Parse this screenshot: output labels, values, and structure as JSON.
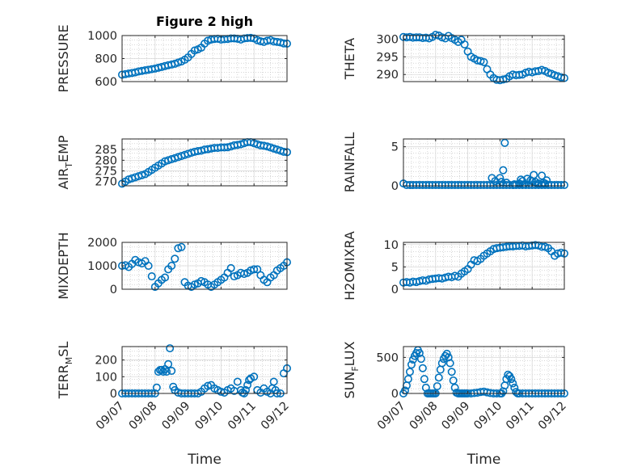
{
  "figure_title": "Figure 2 high",
  "colors": {
    "marker": "#0072BD",
    "axis": "#262626",
    "grid": "#bfbfbf"
  },
  "x_ticks": [
    "09/07",
    "09/08",
    "09/09",
    "09/10",
    "09/11",
    "09/12"
  ],
  "xlabel": "Time",
  "chart_data": [
    {
      "type": "scatter",
      "ylabel": "PRESSURE",
      "title": "Figure 2 high",
      "xlim": [
        0,
        5
      ],
      "ylim": [
        600,
        1000
      ],
      "yticks": [
        "600",
        "800",
        "1000"
      ],
      "ytick_values": [
        600,
        800,
        1000
      ],
      "grid": true,
      "series": [
        {
          "x": [
            0.0,
            0.1,
            0.2,
            0.3,
            0.4,
            0.5,
            0.6,
            0.7,
            0.8,
            0.9,
            1.0,
            1.1,
            1.2,
            1.3,
            1.4,
            1.5,
            1.6,
            1.7,
            1.8,
            1.9,
            2.0,
            2.1,
            2.2,
            2.3,
            2.4,
            2.5,
            2.6,
            2.7,
            2.8,
            2.9,
            3.0,
            3.1,
            3.2,
            3.3,
            3.4,
            3.5,
            3.6,
            3.7,
            3.8,
            3.9,
            4.0,
            4.1,
            4.2,
            4.3,
            4.4,
            4.5,
            4.6,
            4.7,
            4.8,
            4.9,
            5.0
          ],
          "y": [
            660,
            665,
            670,
            675,
            680,
            688,
            693,
            698,
            703,
            708,
            713,
            720,
            727,
            735,
            742,
            748,
            755,
            765,
            775,
            790,
            810,
            840,
            870,
            880,
            895,
            930,
            955,
            965,
            970,
            972,
            965,
            968,
            970,
            975,
            975,
            972,
            965,
            975,
            978,
            980,
            975,
            960,
            950,
            945,
            955,
            960,
            948,
            945,
            940,
            932,
            930
          ]
        }
      ]
    },
    {
      "type": "scatter",
      "ylabel": "THETA",
      "xlim": [
        0,
        5
      ],
      "ylim": [
        288,
        301
      ],
      "yticks": [
        "290",
        "295",
        "300"
      ],
      "ytick_values": [
        290,
        295,
        300
      ],
      "grid": true,
      "series": [
        {
          "x": [
            0.0,
            0.1,
            0.2,
            0.3,
            0.4,
            0.5,
            0.6,
            0.7,
            0.8,
            0.9,
            1.0,
            1.1,
            1.2,
            1.3,
            1.4,
            1.5,
            1.6,
            1.7,
            1.8,
            1.9,
            2.0,
            2.1,
            2.2,
            2.3,
            2.4,
            2.5,
            2.6,
            2.7,
            2.8,
            2.9,
            3.0,
            3.1,
            3.2,
            3.3,
            3.4,
            3.5,
            3.6,
            3.7,
            3.8,
            3.9,
            4.0,
            4.1,
            4.2,
            4.3,
            4.4,
            4.5,
            4.6,
            4.7,
            4.8,
            4.9,
            5.0
          ],
          "y": [
            300.6,
            300.5,
            300.6,
            300.4,
            300.5,
            300.5,
            300.3,
            300.4,
            300.2,
            300.6,
            301.2,
            301.0,
            300.5,
            300.2,
            300.9,
            300.3,
            299.8,
            299.2,
            299.8,
            298.5,
            296.5,
            295.0,
            294.5,
            294.0,
            293.8,
            293.5,
            291.5,
            290.0,
            289.0,
            288.5,
            288.4,
            288.6,
            288.8,
            289.5,
            290.0,
            289.8,
            289.9,
            290.0,
            290.5,
            290.8,
            290.6,
            290.9,
            291.0,
            291.3,
            291.0,
            290.5,
            290.2,
            289.8,
            289.5,
            289.2,
            289.0
          ]
        }
      ]
    },
    {
      "type": "scatter",
      "ylabel": "AIR_TEMP",
      "xlim": [
        0,
        5
      ],
      "ylim": [
        268,
        290
      ],
      "yticks": [
        "270",
        "275",
        "280",
        "285"
      ],
      "ytick_values": [
        270,
        275,
        280,
        285
      ],
      "grid": true,
      "series": [
        {
          "x": [
            0.0,
            0.1,
            0.2,
            0.3,
            0.4,
            0.5,
            0.6,
            0.7,
            0.8,
            0.9,
            1.0,
            1.1,
            1.2,
            1.3,
            1.4,
            1.5,
            1.6,
            1.7,
            1.8,
            1.9,
            2.0,
            2.1,
            2.2,
            2.3,
            2.4,
            2.5,
            2.6,
            2.7,
            2.8,
            2.9,
            3.0,
            3.1,
            3.2,
            3.3,
            3.4,
            3.5,
            3.6,
            3.7,
            3.8,
            3.9,
            4.0,
            4.1,
            4.2,
            4.3,
            4.4,
            4.5,
            4.6,
            4.7,
            4.8,
            4.9,
            5.0
          ],
          "y": [
            269,
            270,
            271,
            271.5,
            272,
            272.5,
            273,
            273.5,
            274.5,
            275.5,
            276.5,
            277.5,
            278.5,
            279.5,
            280,
            280.5,
            281,
            281.5,
            282,
            282.5,
            283,
            283.5,
            284,
            284.3,
            284.5,
            285,
            285.2,
            285.5,
            285.8,
            285.8,
            286,
            286,
            286.1,
            286.5,
            287,
            287.2,
            287.5,
            288,
            288.5,
            288.5,
            288,
            287.5,
            287,
            286.8,
            286.5,
            286,
            285.5,
            285,
            284.5,
            284,
            283.8
          ]
        }
      ]
    },
    {
      "type": "scatter",
      "ylabel": "RAINFALL",
      "xlim": [
        0,
        5
      ],
      "ylim": [
        0,
        6
      ],
      "yticks": [
        "0",
        "5"
      ],
      "ytick_values": [
        0,
        5
      ],
      "grid": true,
      "series": [
        {
          "x": [
            0.0,
            0.1,
            0.2,
            0.3,
            0.4,
            0.5,
            0.6,
            0.7,
            0.8,
            0.9,
            1.0,
            1.1,
            1.2,
            1.3,
            1.4,
            1.5,
            1.6,
            1.7,
            1.8,
            1.9,
            2.0,
            2.1,
            2.2,
            2.3,
            2.4,
            2.5,
            2.6,
            2.7,
            2.8,
            2.9,
            3.0,
            3.1,
            3.2,
            3.3,
            3.4,
            3.5,
            3.6,
            3.7,
            3.8,
            3.9,
            4.0,
            4.1,
            4.2,
            4.3,
            4.4,
            4.5,
            4.6,
            4.7,
            4.8,
            4.9,
            5.0,
            2.75,
            2.85,
            3.0,
            3.05,
            3.1,
            3.15,
            3.2,
            3.45,
            3.6,
            3.65,
            3.7,
            3.75,
            3.85,
            3.95,
            4.0,
            4.05,
            4.1,
            4.2,
            4.3,
            4.35,
            4.4,
            4.45
          ],
          "y": [
            0.3,
            0.1,
            0.1,
            0.1,
            0.1,
            0.1,
            0.1,
            0.1,
            0.1,
            0.1,
            0.1,
            0.1,
            0.1,
            0.1,
            0.1,
            0.1,
            0.1,
            0.1,
            0.1,
            0.1,
            0.1,
            0.1,
            0.1,
            0.1,
            0.1,
            0.1,
            0.1,
            0.1,
            0.1,
            0.1,
            0.1,
            0.1,
            0.1,
            0.1,
            0.1,
            0.1,
            0.1,
            0.1,
            0.1,
            0.1,
            0.1,
            0.1,
            0.1,
            0.1,
            0.1,
            0.1,
            0.1,
            0.1,
            0.1,
            0.1,
            0.1,
            1.0,
            0.6,
            1.0,
            0.5,
            2.0,
            5.5,
            0.4,
            0.2,
            0.3,
            0.8,
            0.6,
            0.2,
            0.9,
            0.7,
            0.6,
            1.4,
            0.5,
            0.3,
            1.3,
            0.4,
            0.3,
            0.7
          ]
        }
      ]
    },
    {
      "type": "scatter",
      "ylabel": "MIXDEPTH",
      "xlim": [
        0,
        5
      ],
      "ylim": [
        0,
        2000
      ],
      "yticks": [
        "0",
        "1000",
        "2000"
      ],
      "ytick_values": [
        0,
        1000,
        2000
      ],
      "grid": true,
      "series": [
        {
          "x": [
            0.0,
            0.1,
            0.2,
            0.3,
            0.4,
            0.5,
            0.6,
            0.7,
            0.8,
            0.9,
            1.0,
            1.1,
            1.2,
            1.3,
            1.4,
            1.5,
            1.6,
            1.7,
            1.8,
            1.9,
            2.0,
            2.1,
            2.2,
            2.3,
            2.4,
            2.5,
            2.6,
            2.7,
            2.8,
            2.9,
            3.0,
            3.1,
            3.2,
            3.3,
            3.4,
            3.5,
            3.6,
            3.7,
            3.8,
            3.9,
            4.0,
            4.1,
            4.2,
            4.3,
            4.4,
            4.5,
            4.6,
            4.7,
            4.8,
            4.9,
            5.0
          ],
          "y": [
            1000,
            1020,
            950,
            1080,
            1250,
            1150,
            1100,
            1200,
            1000,
            550,
            100,
            250,
            400,
            500,
            850,
            1000,
            1300,
            1750,
            1800,
            300,
            150,
            100,
            200,
            250,
            350,
            300,
            200,
            100,
            200,
            300,
            400,
            500,
            700,
            900,
            550,
            600,
            700,
            650,
            700,
            800,
            850,
            850,
            600,
            400,
            300,
            500,
            600,
            800,
            900,
            1000,
            1150
          ]
        }
      ]
    },
    {
      "type": "scatter",
      "ylabel": "H2OMIXRA",
      "xlim": [
        0,
        5
      ],
      "ylim": [
        0,
        10.5
      ],
      "yticks": [
        "0",
        "5",
        "10"
      ],
      "ytick_values": [
        0,
        5,
        10
      ],
      "grid": true,
      "series": [
        {
          "x": [
            0.0,
            0.1,
            0.2,
            0.3,
            0.4,
            0.5,
            0.6,
            0.7,
            0.8,
            0.9,
            1.0,
            1.1,
            1.2,
            1.3,
            1.4,
            1.5,
            1.6,
            1.7,
            1.8,
            1.9,
            2.0,
            2.1,
            2.2,
            2.3,
            2.4,
            2.5,
            2.6,
            2.7,
            2.8,
            2.9,
            3.0,
            3.1,
            3.2,
            3.3,
            3.4,
            3.5,
            3.6,
            3.7,
            3.8,
            3.9,
            4.0,
            4.1,
            4.2,
            4.3,
            4.4,
            4.5,
            4.6,
            4.7,
            4.8,
            4.9,
            5.0
          ],
          "y": [
            1.5,
            1.6,
            1.5,
            1.7,
            1.6,
            1.8,
            2.0,
            1.9,
            2.2,
            2.3,
            2.4,
            2.5,
            2.4,
            2.6,
            2.8,
            2.7,
            3.0,
            2.8,
            3.5,
            4.0,
            4.5,
            5.5,
            6.5,
            6.3,
            6.8,
            7.5,
            8.0,
            8.5,
            9.0,
            9.2,
            9.3,
            9.4,
            9.5,
            9.6,
            9.6,
            9.7,
            9.7,
            9.8,
            9.6,
            9.7,
            9.8,
            9.9,
            9.8,
            9.5,
            9.5,
            9.2,
            8.5,
            7.5,
            8.0,
            8.2,
            8.0
          ]
        }
      ]
    },
    {
      "type": "scatter",
      "ylabel": "TERR_MSL",
      "xlim": [
        0,
        5
      ],
      "ylim": [
        0,
        280
      ],
      "yticks": [
        "0",
        "100",
        "200"
      ],
      "ytick_values": [
        0,
        100,
        200
      ],
      "grid": true,
      "series": [
        {
          "x": [
            0.0,
            0.1,
            0.2,
            0.3,
            0.4,
            0.5,
            0.6,
            0.7,
            0.8,
            0.9,
            1.0,
            1.05,
            1.1,
            1.15,
            1.2,
            1.25,
            1.3,
            1.35,
            1.4,
            1.45,
            1.5,
            1.55,
            1.6,
            1.7,
            1.8,
            1.9,
            2.0,
            2.1,
            2.2,
            2.3,
            2.4,
            2.5,
            2.6,
            2.7,
            2.8,
            2.9,
            3.0,
            3.1,
            3.2,
            3.3,
            3.4,
            3.5,
            3.6,
            3.65,
            3.7,
            3.75,
            3.8,
            3.85,
            3.9,
            4.0,
            4.1,
            4.2,
            4.3,
            4.4,
            4.5,
            4.55,
            4.6,
            4.65,
            4.7,
            4.8,
            4.9,
            5.0
          ],
          "y": [
            0,
            0,
            0,
            0,
            0,
            0,
            0,
            0,
            0,
            0,
            0,
            35,
            130,
            140,
            140,
            130,
            145,
            130,
            175,
            270,
            135,
            40,
            20,
            5,
            0,
            0,
            0,
            0,
            0,
            0,
            10,
            30,
            45,
            50,
            30,
            20,
            10,
            5,
            20,
            30,
            15,
            70,
            20,
            5,
            0,
            20,
            50,
            80,
            90,
            100,
            20,
            5,
            30,
            10,
            0,
            30,
            70,
            20,
            0,
            0,
            120,
            150
          ]
        }
      ]
    },
    {
      "type": "scatter",
      "ylabel": "SUN_FLUX",
      "xlim": [
        0,
        5
      ],
      "ylim": [
        0,
        650
      ],
      "yticks": [
        "0",
        "500"
      ],
      "ytick_values": [
        0,
        500
      ],
      "grid": true,
      "series": [
        {
          "x": [
            0.0,
            0.05,
            0.1,
            0.15,
            0.2,
            0.25,
            0.3,
            0.35,
            0.4,
            0.45,
            0.5,
            0.55,
            0.6,
            0.65,
            0.7,
            0.75,
            0.8,
            0.85,
            0.9,
            0.95,
            1.0,
            1.05,
            1.1,
            1.15,
            1.2,
            1.25,
            1.3,
            1.35,
            1.4,
            1.45,
            1.5,
            1.55,
            1.6,
            1.65,
            1.7,
            1.75,
            1.8,
            1.85,
            1.9,
            1.95,
            2.0,
            2.1,
            2.2,
            2.3,
            2.4,
            2.5,
            2.6,
            2.7,
            2.8,
            2.9,
            3.0,
            3.05,
            3.1,
            3.15,
            3.2,
            3.25,
            3.3,
            3.35,
            3.4,
            3.45,
            3.5,
            3.55,
            3.6,
            3.7,
            3.8,
            3.9,
            4.0,
            4.1,
            4.2,
            4.3,
            4.4,
            4.5,
            4.6,
            4.7,
            4.8,
            4.9,
            5.0
          ],
          "y": [
            0,
            40,
            110,
            200,
            300,
            400,
            470,
            520,
            560,
            600,
            560,
            480,
            350,
            200,
            80,
            0,
            0,
            0,
            0,
            0,
            0,
            100,
            220,
            330,
            420,
            480,
            520,
            550,
            500,
            420,
            300,
            180,
            80,
            10,
            0,
            0,
            0,
            0,
            0,
            0,
            0,
            0,
            5,
            10,
            20,
            25,
            15,
            5,
            0,
            0,
            0,
            0,
            30,
            110,
            200,
            260,
            240,
            200,
            140,
            80,
            20,
            0,
            0,
            0,
            0,
            0,
            0,
            0,
            0,
            0,
            0,
            0,
            0,
            0,
            0,
            0,
            0
          ]
        }
      ]
    }
  ]
}
